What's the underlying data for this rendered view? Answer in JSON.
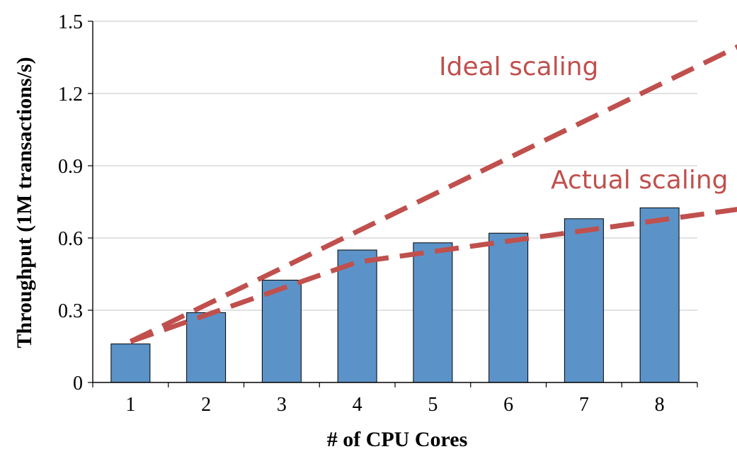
{
  "chart_data": {
    "type": "bar",
    "xlabel": "# of CPU Cores",
    "ylabel": "Throughput (1M transactions/s)",
    "categories": [
      "1",
      "2",
      "3",
      "4",
      "5",
      "6",
      "7",
      "8"
    ],
    "values": [
      0.16,
      0.29,
      0.425,
      0.55,
      0.58,
      0.62,
      0.68,
      0.725
    ],
    "ylim": [
      0,
      1.5
    ],
    "yticks": [
      "0",
      "0.3",
      "0.6",
      "0.9",
      "1.2",
      "1.5"
    ],
    "grid": true,
    "bar_color": "#5b93c9",
    "annotations": [
      {
        "text": "Ideal scaling",
        "color": "#c0504d"
      },
      {
        "text": "Actual scaling",
        "color": "#c0504d"
      }
    ],
    "trend_lines": [
      {
        "label": "Ideal scaling",
        "x": [
          1,
          9.4
        ],
        "y": [
          0.17,
          1.45
        ],
        "style": "dashed-arrow",
        "color": "#c0504d"
      },
      {
        "label": "Actual scaling",
        "x": [
          1,
          4,
          9.4
        ],
        "y": [
          0.17,
          0.5,
          0.735
        ],
        "style": "dashed-arrow",
        "color": "#c0504d"
      }
    ]
  }
}
